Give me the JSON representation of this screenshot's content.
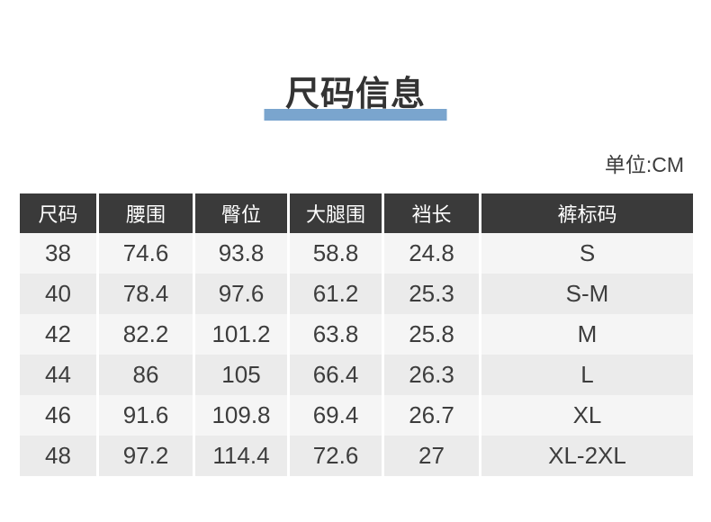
{
  "page": {
    "title": "尺码信息",
    "unit_label": "单位:CM"
  },
  "colors": {
    "accent_bar": "#7aa5ce",
    "header_bg": "#3a3a3a",
    "header_text": "#ffffff",
    "row_light": "#f5f5f5",
    "row_dark": "#ebebeb",
    "body_text": "#3d3d3d",
    "title_text": "#333333"
  },
  "table": {
    "headers": [
      "尺码",
      "腰围",
      "臀位",
      "大腿围",
      "裆长",
      "裤标码"
    ],
    "rows": [
      [
        "38",
        "74.6",
        "93.8",
        "58.8",
        "24.8",
        "S"
      ],
      [
        "40",
        "78.4",
        "97.6",
        "61.2",
        "25.3",
        "S-M"
      ],
      [
        "42",
        "82.2",
        "101.2",
        "63.8",
        "25.8",
        "M"
      ],
      [
        "44",
        "86",
        "105",
        "66.4",
        "26.3",
        "L"
      ],
      [
        "46",
        "91.6",
        "109.8",
        "69.4",
        "26.7",
        "XL"
      ],
      [
        "48",
        "97.2",
        "114.4",
        "72.6",
        "27",
        "XL-2XL"
      ]
    ]
  }
}
